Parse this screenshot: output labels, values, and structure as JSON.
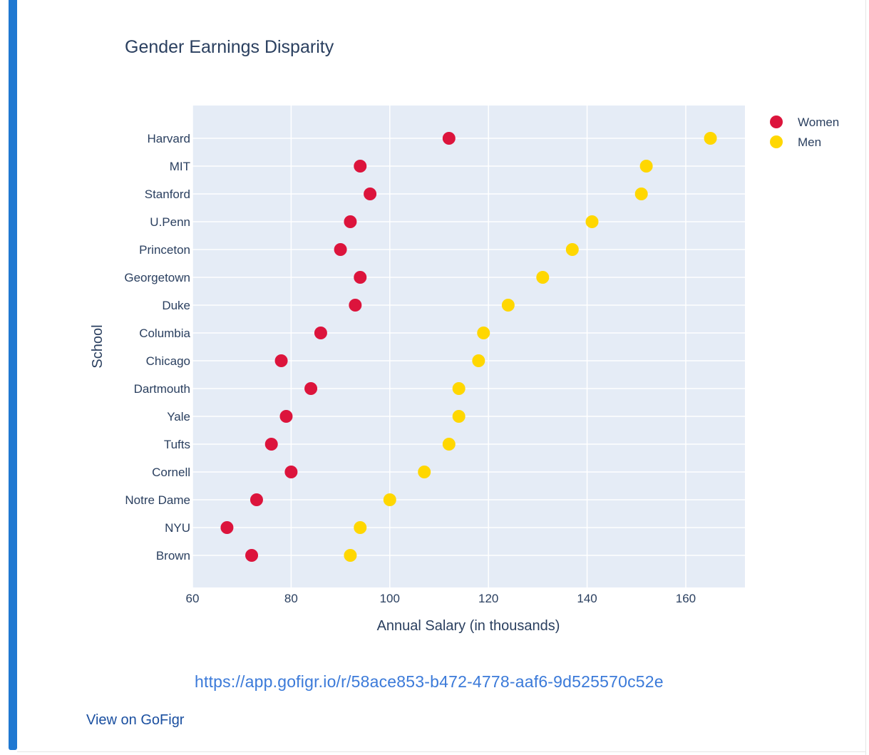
{
  "chart_data": {
    "type": "scatter",
    "title": "Gender Earnings Disparity",
    "xlabel": "Annual Salary (in thousands)",
    "ylabel": "School",
    "xlim": [
      60,
      172
    ],
    "x_ticks": [
      60,
      80,
      100,
      120,
      140,
      160
    ],
    "grid": true,
    "legend_position": "top-right",
    "categories": [
      "Brown",
      "NYU",
      "Notre Dame",
      "Cornell",
      "Tufts",
      "Yale",
      "Dartmouth",
      "Chicago",
      "Columbia",
      "Duke",
      "Georgetown",
      "Princeton",
      "U.Penn",
      "Stanford",
      "MIT",
      "Harvard"
    ],
    "series": [
      {
        "name": "Women",
        "color": "#dc143c",
        "values": [
          72,
          67,
          73,
          80,
          76,
          79,
          84,
          78,
          86,
          93,
          94,
          90,
          92,
          96,
          94,
          112
        ]
      },
      {
        "name": "Men",
        "color": "#ffd700",
        "values": [
          92,
          94,
          100,
          107,
          112,
          114,
          114,
          118,
          119,
          124,
          131,
          137,
          141,
          151,
          152,
          165
        ]
      }
    ]
  },
  "footer": {
    "url": "https://app.gofigr.io/r/58ace853-b472-4778-aaf6-9d525570c52e",
    "view_label": "View on GoFigr"
  },
  "colors": {
    "accent_bar": "#1f78d1",
    "plot_bg": "#e5ecf6",
    "link": "#3b7ad9"
  }
}
